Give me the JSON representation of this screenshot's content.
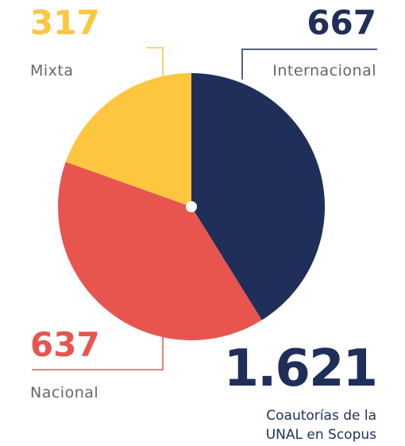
{
  "chart_data": {
    "type": "pie",
    "categories": [
      "Internacional",
      "Nacional",
      "Mixta"
    ],
    "values": [
      667,
      637,
      317
    ],
    "colors": [
      "#1f2f5a",
      "#e8554e",
      "#fcc63f"
    ],
    "total": {
      "value": 1621,
      "label": "1.621"
    },
    "caption": [
      "Coautorías de la",
      "UNAL en Scopus"
    ]
  }
}
